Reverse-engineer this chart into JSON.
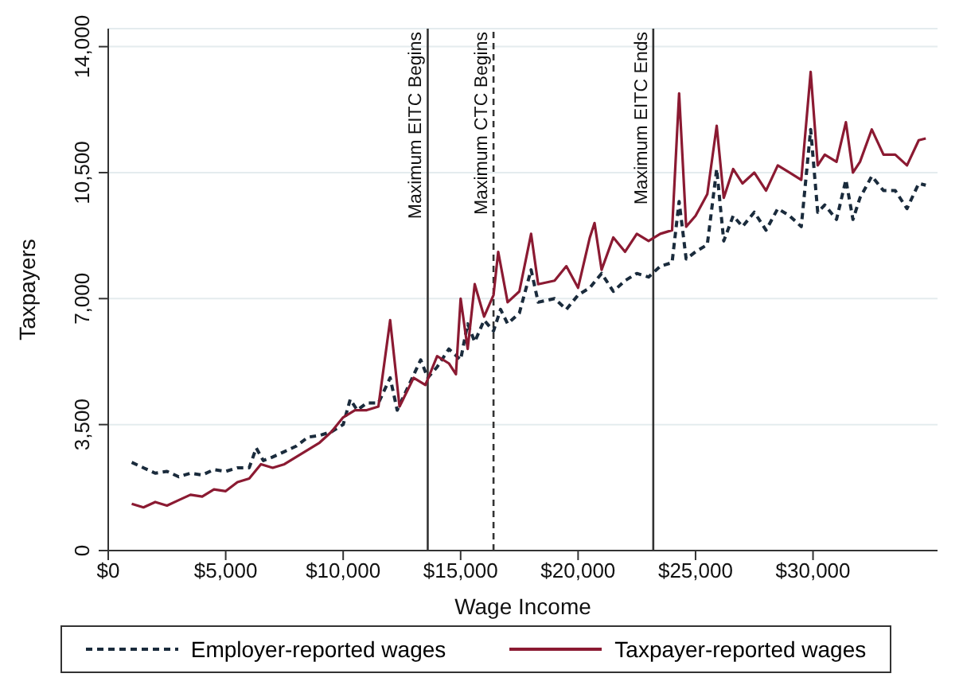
{
  "chart_data": {
    "type": "line",
    "xlabel": "Wage Income",
    "ylabel": "Taxpayers",
    "xlim": [
      0,
      35300
    ],
    "xticks": [
      {
        "value": 0,
        "label": "$0"
      },
      {
        "value": 5000,
        "label": "$5,000"
      },
      {
        "value": 10000,
        "label": "$10,000"
      },
      {
        "value": 15000,
        "label": "$15,000"
      },
      {
        "value": 20000,
        "label": "$20,000"
      },
      {
        "value": 25000,
        "label": "$25,000"
      },
      {
        "value": 30000,
        "label": "$30,000"
      }
    ],
    "ylim": [
      0,
      14500
    ],
    "yticks": [
      0,
      {
        "value": 3500,
        "label": "3,500"
      },
      {
        "value": 7000,
        "label": "7,000"
      },
      {
        "value": 10500,
        "label": "10,500"
      },
      {
        "value": 14000,
        "label": "14,000"
      }
    ],
    "grid": "y",
    "legend": "bottom",
    "marker": "none",
    "ref_lines": [
      {
        "axis": "x",
        "value": 13600,
        "label": "Maximum EITC Begins",
        "color": "#333333",
        "line_style": "solid"
      },
      {
        "axis": "x",
        "value": 16400,
        "label": "Maximum CTC Begins",
        "color": "#333333",
        "line_style": "dashed"
      },
      {
        "axis": "x",
        "value": 23200,
        "label": "Maximum EITC Ends",
        "color": "#333333",
        "line_style": "solid"
      }
    ],
    "series": [
      {
        "name": "Employer-reported wages",
        "color": "#1a2b3c",
        "line_style": "dashed",
        "x": [
          1000,
          1500,
          2000,
          2500,
          3000,
          3500,
          4000,
          4500,
          5000,
          5500,
          6000,
          6300,
          6600,
          7000,
          7500,
          8000,
          8500,
          9000,
          9500,
          10000,
          10300,
          10600,
          11000,
          11500,
          12000,
          12300,
          12800,
          13300,
          13600,
          14000,
          14500,
          15000,
          15300,
          15600,
          16000,
          16400,
          16700,
          17000,
          17500,
          18000,
          18300,
          19000,
          19500,
          20000,
          20500,
          21000,
          21500,
          22000,
          22500,
          23000,
          23500,
          24000,
          24300,
          24600,
          25000,
          25500,
          25900,
          26200,
          26600,
          27000,
          27500,
          28000,
          28500,
          29000,
          29500,
          29900,
          30200,
          30500,
          31000,
          31400,
          31700,
          32000,
          32500,
          33000,
          33500,
          34000,
          34500,
          34800
        ],
        "values": [
          2450,
          2300,
          2150,
          2200,
          2050,
          2150,
          2100,
          2250,
          2200,
          2300,
          2300,
          2850,
          2500,
          2600,
          2750,
          2900,
          3150,
          3200,
          3300,
          3500,
          4200,
          3900,
          4100,
          4100,
          4800,
          3900,
          4600,
          5300,
          4800,
          5100,
          5600,
          5300,
          6300,
          5800,
          6400,
          6100,
          6700,
          6300,
          6600,
          7800,
          6900,
          7000,
          6700,
          7100,
          7300,
          7700,
          7200,
          7500,
          7700,
          7600,
          7900,
          8000,
          9700,
          8100,
          8300,
          8500,
          10600,
          8600,
          9300,
          9000,
          9400,
          8900,
          9500,
          9300,
          9000,
          11700,
          9400,
          9600,
          9200,
          10300,
          9200,
          9800,
          10400,
          10000,
          10000,
          9500,
          10200,
          10150
        ]
      },
      {
        "name": "Taxpayer-reported wages",
        "color": "#8b1a32",
        "line_style": "solid",
        "x": [
          1000,
          1500,
          2000,
          2500,
          3000,
          3500,
          4000,
          4500,
          5000,
          5500,
          6000,
          6500,
          7000,
          7500,
          8000,
          8500,
          9000,
          9500,
          10000,
          10500,
          11000,
          11500,
          12000,
          12400,
          13000,
          13500,
          14000,
          14500,
          14800,
          15000,
          15300,
          15600,
          16000,
          16400,
          16600,
          17000,
          17500,
          18000,
          18300,
          19000,
          19500,
          20000,
          20500,
          20700,
          21000,
          21500,
          22000,
          22500,
          23000,
          23500,
          24000,
          24300,
          24600,
          25000,
          25500,
          25900,
          26200,
          26600,
          27000,
          27500,
          28000,
          28500,
          29000,
          29500,
          29900,
          30200,
          30500,
          31000,
          31400,
          31700,
          32000,
          32500,
          33000,
          33500,
          34000,
          34500,
          34800
        ],
        "values": [
          1300,
          1200,
          1350,
          1250,
          1400,
          1550,
          1500,
          1700,
          1650,
          1900,
          2000,
          2400,
          2300,
          2400,
          2600,
          2800,
          3000,
          3300,
          3700,
          3900,
          3900,
          4000,
          6400,
          4000,
          4800,
          4600,
          5400,
          5200,
          4900,
          7000,
          5600,
          7400,
          6500,
          7100,
          8300,
          6900,
          7200,
          8800,
          7400,
          7500,
          7900,
          7300,
          8700,
          9100,
          7800,
          8700,
          8300,
          8800,
          8600,
          8800,
          8900,
          12700,
          9000,
          9300,
          9900,
          11800,
          9800,
          10600,
          10200,
          10500,
          10000,
          10700,
          10500,
          10300,
          13300,
          10700,
          11000,
          10800,
          11900,
          10500,
          10800,
          11700,
          11000,
          11000,
          10700,
          11400,
          11450
        ]
      }
    ]
  }
}
